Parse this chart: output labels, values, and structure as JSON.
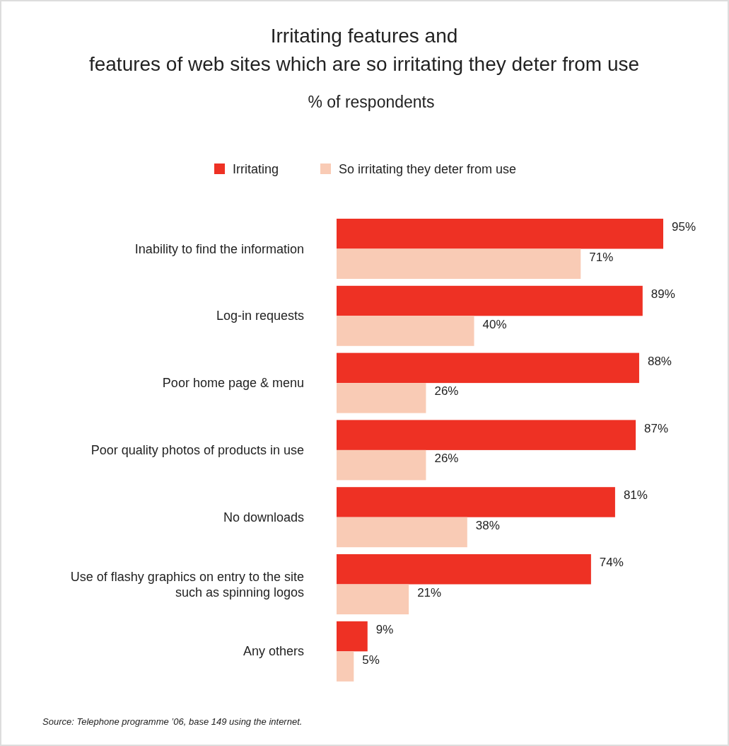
{
  "chart_data": {
    "type": "bar",
    "orientation": "horizontal",
    "title": "Irritating features and\nfeatures of web sites which are so irritating they deter from use",
    "subtitle": "% of respondents",
    "categories": [
      "Inability to find the information",
      "Log-in requests",
      "Poor home page & menu",
      "Poor quality photos of products in use",
      "No downloads",
      "Use of flashy graphics on entry to the site\nsuch as spinning logos",
      "Any others"
    ],
    "series": [
      {
        "name": "Irritating",
        "color": "#ee3124",
        "values": [
          95,
          89,
          88,
          87,
          81,
          74,
          9
        ],
        "value_labels": [
          "95%",
          "89%",
          "88%",
          "87%",
          "81%",
          "74%",
          "9%"
        ]
      },
      {
        "name": "So irritating they deter from use",
        "color": "#f9cbb5",
        "values": [
          71,
          40,
          26,
          26,
          38,
          21,
          5
        ],
        "value_labels": [
          "71%",
          "40%",
          "26%",
          "26%",
          "38%",
          "21%",
          "5%"
        ]
      }
    ],
    "legend": "top",
    "annotations": [
      "Source: Telephone programme ’06, base 149 using the internet."
    ]
  }
}
